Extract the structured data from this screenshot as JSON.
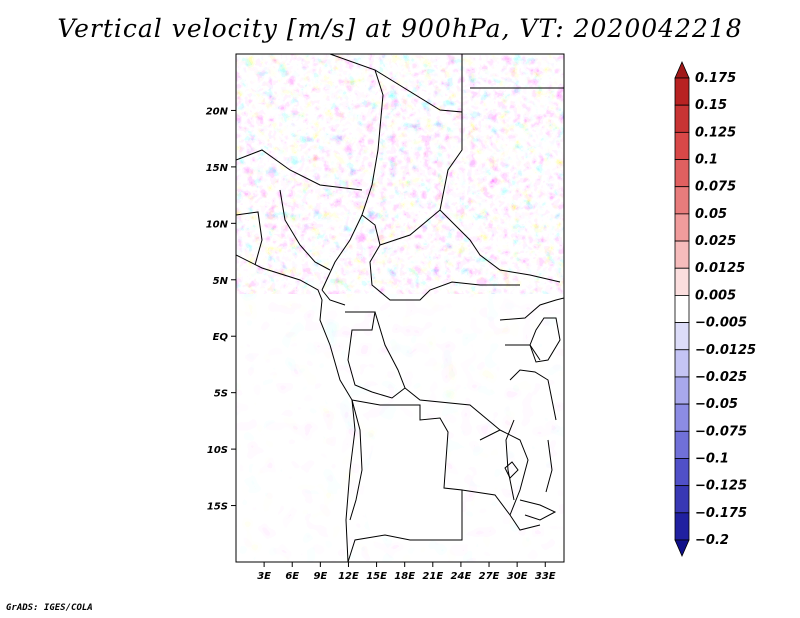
{
  "title": "Vertical velocity [m/s] at 900hPa, VT: 2020042218",
  "credit": "GrADS: IGES/COLA",
  "map": {
    "lat_labels": [
      "20N",
      "15N",
      "10N",
      "5N",
      "EQ",
      "5S",
      "10S",
      "15S"
    ],
    "lat_values": [
      20,
      15,
      10,
      5,
      0,
      -5,
      -10,
      -15
    ],
    "lon_labels": [
      "3E",
      "6E",
      "9E",
      "12E",
      "15E",
      "18E",
      "21E",
      "24E",
      "27E",
      "30E",
      "33E"
    ],
    "lon_values": [
      3,
      6,
      9,
      12,
      15,
      18,
      21,
      24,
      27,
      30,
      33
    ],
    "lon_range": [
      0,
      35
    ],
    "lat_range": [
      -20,
      25
    ]
  },
  "colorbar": {
    "labels": [
      "0.175",
      "0.15",
      "0.125",
      "0.1",
      "0.075",
      "0.05",
      "0.025",
      "0.0125",
      "0.005",
      "−0.005",
      "−0.0125",
      "−0.025",
      "−0.05",
      "−0.075",
      "−0.1",
      "−0.125",
      "−0.175",
      "−0.2"
    ],
    "colors": [
      "#a01818",
      "#b82222",
      "#c83434",
      "#d84848",
      "#e06060",
      "#e87c7c",
      "#f09c9c",
      "#f6bcbc",
      "#fbdede",
      "#ffffff",
      "#dcdcf8",
      "#c4c4f4",
      "#a8a8ec",
      "#8c8ce4",
      "#7070d8",
      "#5050c8",
      "#3838b4",
      "#2020a0",
      "#10108a"
    ]
  }
}
